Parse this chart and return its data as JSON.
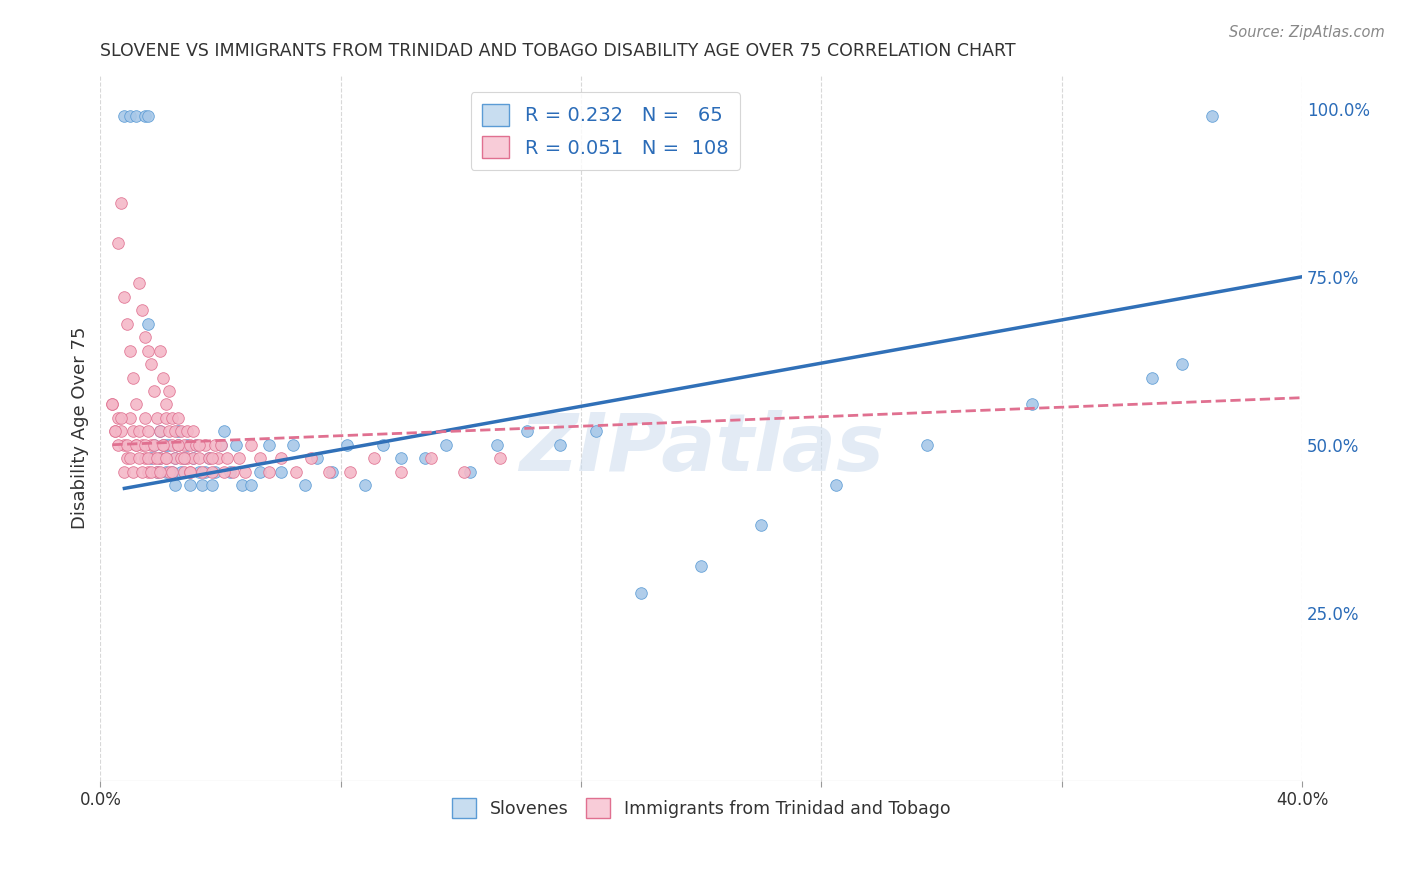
{
  "title": "SLOVENE VS IMMIGRANTS FROM TRINIDAD AND TOBAGO DISABILITY AGE OVER 75 CORRELATION CHART",
  "source": "Source: ZipAtlas.com",
  "ylabel": "Disability Age Over 75",
  "xlim": [
    0.0,
    0.4
  ],
  "ylim": [
    0.0,
    1.05
  ],
  "yticks": [
    0.25,
    0.5,
    0.75,
    1.0
  ],
  "ytick_labels": [
    "25.0%",
    "50.0%",
    "75.0%",
    "100.0%"
  ],
  "xticks": [
    0.0,
    0.08,
    0.16,
    0.24,
    0.32,
    0.4
  ],
  "blue_R": 0.232,
  "blue_N": 65,
  "pink_R": 0.051,
  "pink_N": 108,
  "blue_color": "#a8c8e8",
  "blue_edge_color": "#5b9bd5",
  "pink_color": "#f4b8c8",
  "pink_edge_color": "#e07090",
  "blue_line_color": "#3070b8",
  "pink_line_color": "#e07090",
  "legend_label_blue": "Slovenes",
  "legend_label_pink": "Immigrants from Trinidad and Tobago",
  "blue_scatter_x": [
    0.008,
    0.01,
    0.012,
    0.015,
    0.016,
    0.016,
    0.017,
    0.018,
    0.019,
    0.02,
    0.02,
    0.021,
    0.022,
    0.022,
    0.023,
    0.024,
    0.025,
    0.025,
    0.026,
    0.026,
    0.027,
    0.028,
    0.029,
    0.03,
    0.031,
    0.032,
    0.033,
    0.034,
    0.035,
    0.036,
    0.037,
    0.038,
    0.04,
    0.041,
    0.043,
    0.045,
    0.047,
    0.05,
    0.053,
    0.056,
    0.06,
    0.064,
    0.068,
    0.072,
    0.077,
    0.082,
    0.088,
    0.094,
    0.1,
    0.108,
    0.115,
    0.123,
    0.132,
    0.142,
    0.153,
    0.165,
    0.18,
    0.2,
    0.22,
    0.245,
    0.275,
    0.31,
    0.35,
    0.36,
    0.37
  ],
  "blue_scatter_y": [
    0.99,
    0.99,
    0.99,
    0.99,
    0.99,
    0.68,
    0.48,
    0.5,
    0.46,
    0.48,
    0.52,
    0.5,
    0.46,
    0.5,
    0.5,
    0.46,
    0.48,
    0.44,
    0.5,
    0.52,
    0.46,
    0.48,
    0.5,
    0.44,
    0.48,
    0.5,
    0.46,
    0.44,
    0.46,
    0.48,
    0.44,
    0.46,
    0.5,
    0.52,
    0.46,
    0.5,
    0.44,
    0.44,
    0.46,
    0.5,
    0.46,
    0.5,
    0.44,
    0.48,
    0.46,
    0.5,
    0.44,
    0.5,
    0.48,
    0.48,
    0.5,
    0.46,
    0.5,
    0.52,
    0.5,
    0.52,
    0.28,
    0.32,
    0.38,
    0.44,
    0.5,
    0.56,
    0.6,
    0.62,
    0.99
  ],
  "pink_scatter_x": [
    0.004,
    0.005,
    0.006,
    0.006,
    0.007,
    0.007,
    0.008,
    0.008,
    0.009,
    0.009,
    0.01,
    0.01,
    0.011,
    0.011,
    0.012,
    0.012,
    0.013,
    0.013,
    0.014,
    0.014,
    0.015,
    0.015,
    0.015,
    0.016,
    0.016,
    0.016,
    0.017,
    0.017,
    0.018,
    0.018,
    0.019,
    0.019,
    0.02,
    0.02,
    0.02,
    0.021,
    0.021,
    0.022,
    0.022,
    0.022,
    0.023,
    0.023,
    0.023,
    0.024,
    0.024,
    0.025,
    0.025,
    0.026,
    0.026,
    0.027,
    0.027,
    0.028,
    0.028,
    0.029,
    0.029,
    0.03,
    0.03,
    0.031,
    0.031,
    0.032,
    0.033,
    0.034,
    0.035,
    0.036,
    0.037,
    0.038,
    0.039,
    0.04,
    0.042,
    0.044,
    0.046,
    0.048,
    0.05,
    0.053,
    0.056,
    0.06,
    0.065,
    0.07,
    0.076,
    0.083,
    0.091,
    0.1,
    0.11,
    0.121,
    0.133,
    0.004,
    0.005,
    0.006,
    0.007,
    0.008,
    0.009,
    0.01,
    0.011,
    0.012,
    0.013,
    0.014,
    0.015,
    0.016,
    0.017,
    0.018,
    0.019,
    0.02,
    0.021,
    0.022,
    0.024,
    0.026,
    0.028,
    0.03,
    0.033,
    0.037,
    0.041
  ],
  "pink_scatter_y": [
    0.56,
    0.52,
    0.54,
    0.8,
    0.52,
    0.86,
    0.5,
    0.72,
    0.48,
    0.68,
    0.54,
    0.64,
    0.52,
    0.6,
    0.5,
    0.56,
    0.52,
    0.74,
    0.5,
    0.7,
    0.54,
    0.66,
    0.48,
    0.52,
    0.64,
    0.46,
    0.62,
    0.5,
    0.58,
    0.48,
    0.54,
    0.46,
    0.52,
    0.64,
    0.48,
    0.5,
    0.6,
    0.54,
    0.48,
    0.56,
    0.52,
    0.46,
    0.58,
    0.5,
    0.54,
    0.48,
    0.52,
    0.5,
    0.54,
    0.48,
    0.52,
    0.5,
    0.46,
    0.52,
    0.48,
    0.5,
    0.46,
    0.52,
    0.48,
    0.5,
    0.48,
    0.46,
    0.5,
    0.48,
    0.46,
    0.5,
    0.48,
    0.5,
    0.48,
    0.46,
    0.48,
    0.46,
    0.5,
    0.48,
    0.46,
    0.48,
    0.46,
    0.48,
    0.46,
    0.46,
    0.48,
    0.46,
    0.48,
    0.46,
    0.48,
    0.56,
    0.52,
    0.5,
    0.54,
    0.46,
    0.5,
    0.48,
    0.46,
    0.5,
    0.48,
    0.46,
    0.5,
    0.48,
    0.46,
    0.5,
    0.48,
    0.46,
    0.5,
    0.48,
    0.46,
    0.5,
    0.48,
    0.46,
    0.5,
    0.48,
    0.46
  ],
  "watermark": "ZIPatlas",
  "background_color": "#ffffff",
  "grid_color": "#d8d8d8"
}
